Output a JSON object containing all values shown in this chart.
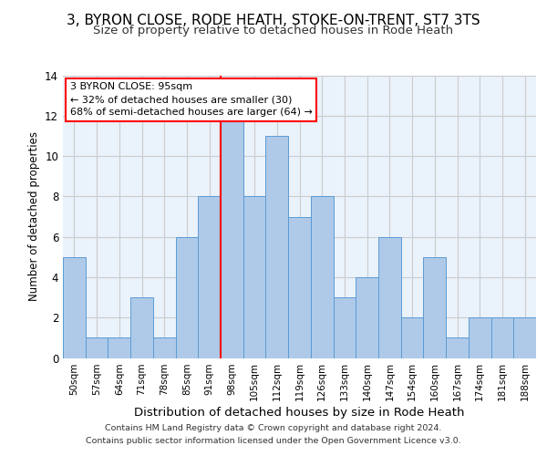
{
  "title1": "3, BYRON CLOSE, RODE HEATH, STOKE-ON-TRENT, ST7 3TS",
  "title2": "Size of property relative to detached houses in Rode Heath",
  "xlabel": "Distribution of detached houses by size in Rode Heath",
  "ylabel": "Number of detached properties",
  "categories": [
    "50sqm",
    "57sqm",
    "64sqm",
    "71sqm",
    "78sqm",
    "85sqm",
    "91sqm",
    "98sqm",
    "105sqm",
    "112sqm",
    "119sqm",
    "126sqm",
    "133sqm",
    "140sqm",
    "147sqm",
    "154sqm",
    "160sqm",
    "167sqm",
    "174sqm",
    "181sqm",
    "188sqm"
  ],
  "values": [
    5,
    1,
    1,
    3,
    1,
    6,
    8,
    12,
    8,
    11,
    7,
    8,
    3,
    4,
    6,
    2,
    5,
    1,
    2,
    2,
    2
  ],
  "bar_color": "#AECAE8",
  "bar_edgecolor": "#5B9BD5",
  "grid_color": "#CCCCCC",
  "bg_color": "#EAF2FB",
  "vline_color": "red",
  "annotation_text": "3 BYRON CLOSE: 95sqm\n← 32% of detached houses are smaller (30)\n68% of semi-detached houses are larger (64) →",
  "annotation_box_edgecolor": "red",
  "ylim": [
    0,
    14
  ],
  "yticks": [
    0,
    2,
    4,
    6,
    8,
    10,
    12,
    14
  ],
  "footer1": "Contains HM Land Registry data © Crown copyright and database right 2024.",
  "footer2": "Contains public sector information licensed under the Open Government Licence v3.0."
}
